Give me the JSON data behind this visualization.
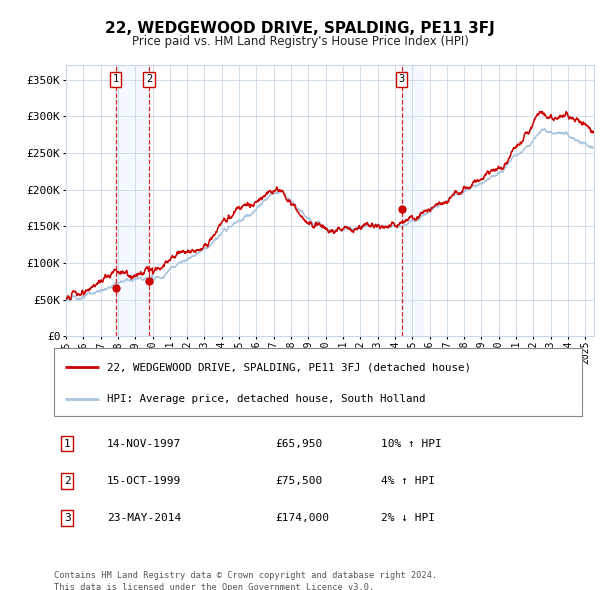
{
  "title": "22, WEDGEWOOD DRIVE, SPALDING, PE11 3FJ",
  "subtitle": "Price paid vs. HM Land Registry's House Price Index (HPI)",
  "legend_line1": "22, WEDGEWOOD DRIVE, SPALDING, PE11 3FJ (detached house)",
  "legend_line2": "HPI: Average price, detached house, South Holland",
  "transactions": [
    {
      "num": 1,
      "date": "14-NOV-1997",
      "price": 65950,
      "pct": "10%",
      "dir": "↑",
      "x": 1997.87
    },
    {
      "num": 2,
      "date": "15-OCT-1999",
      "price": 75500,
      "pct": "4%",
      "dir": "↑",
      "x": 1999.79
    },
    {
      "num": 3,
      "date": "23-MAY-2014",
      "price": 174000,
      "pct": "2%",
      "dir": "↓",
      "x": 2014.39
    }
  ],
  "footnote1": "Contains HM Land Registry data © Crown copyright and database right 2024.",
  "footnote2": "This data is licensed under the Open Government Licence v3.0.",
  "hpi_color": "#aac4dd",
  "price_color": "#cc0000",
  "marker_color": "#cc0000",
  "vline_color": "#cc0000",
  "shade_color": "#ddeeff",
  "grid_color": "#c8d8e8",
  "background_color": "#ffffff",
  "ylim": [
    0,
    370000
  ],
  "xlim_start": 1995.0,
  "xlim_end": 2025.5
}
